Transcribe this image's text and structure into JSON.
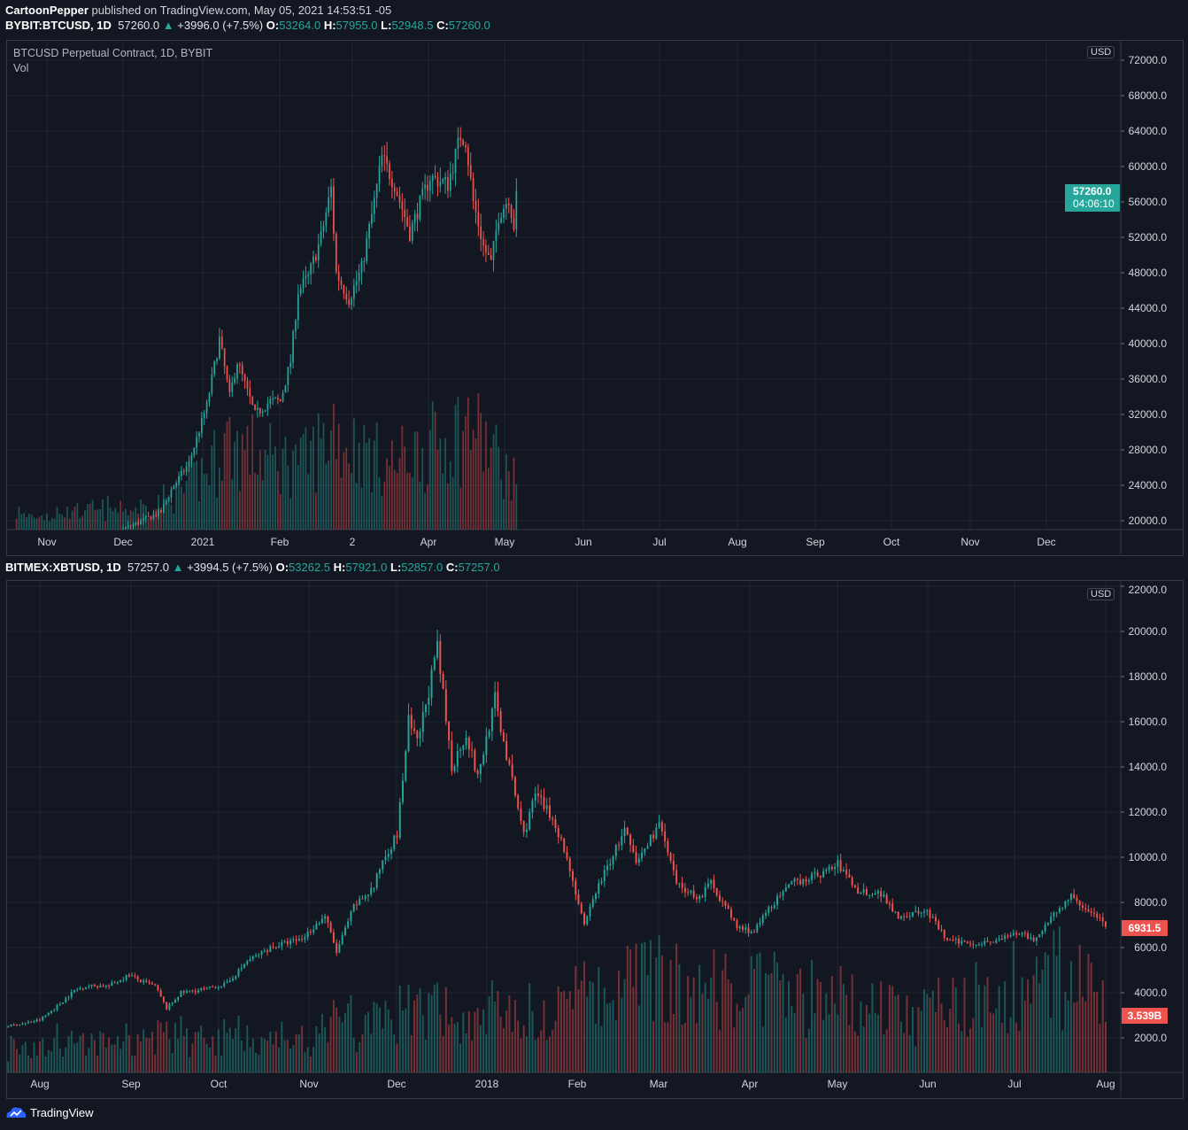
{
  "header": {
    "author": "CartoonPepper",
    "published": "published on TradingView.com, May 05, 2021 14:53:51 -05"
  },
  "top": {
    "symbol": "BYBIT:BTCUSD, 1D",
    "last": "57260.0",
    "change": "+3996.0 (+7.5%)",
    "o": "53264.0",
    "h": "57955.0",
    "l": "52948.5",
    "c": "57260.0",
    "title": "BTCUSD Perpetual Contract, 1D, BYBIT",
    "indicator": "Vol",
    "currency": "USD",
    "price_tag": "57260.0",
    "countdown": "04:06:10"
  },
  "bottom": {
    "symbol": "BITMEX:XBTUSD, 1D",
    "last": "57257.0",
    "change": "+3994.5 (+7.5%)",
    "o": "53262.5",
    "h": "57921.0",
    "l": "52857.0",
    "c": "57257.0",
    "currency": "USD",
    "price_tag": "6931.5",
    "volume_tag": "3.539B"
  },
  "footer": {
    "brand": "TradingView"
  },
  "colors": {
    "background": "#131722",
    "grid": "#222631",
    "up": "#26a69a",
    "down": "#ef5350",
    "text": "#d1d4dc"
  },
  "chart_data": [
    {
      "type": "candlestick",
      "symbol": "BYBIT:BTCUSD",
      "interval": "1D",
      "ylim": [
        20000,
        72000
      ],
      "y_ticks": [
        "72000.0",
        "68000.0",
        "64000.0",
        "60000.0",
        "56000.0",
        "52000.0",
        "48000.0",
        "44000.0",
        "40000.0",
        "36000.0",
        "32000.0",
        "28000.0",
        "24000.0",
        "20000.0"
      ],
      "x_ticks": [
        "Nov",
        "Dec",
        "2021",
        "Feb",
        "2",
        "Apr",
        "May",
        "Jun",
        "Jul",
        "Aug",
        "Sep",
        "Oct",
        "Nov",
        "Dec"
      ],
      "close": [
        [
          "2020-10-20",
          12000
        ],
        [
          "2020-11-15",
          16000
        ],
        [
          "2020-12-01",
          19000
        ],
        [
          "2020-12-16",
          21000
        ],
        [
          "2020-12-20",
          23500
        ],
        [
          "2020-12-27",
          26500
        ],
        [
          "2021-01-03",
          33000
        ],
        [
          "2021-01-08",
          40500
        ],
        [
          "2021-01-12",
          34000
        ],
        [
          "2021-01-15",
          38000
        ],
        [
          "2021-01-22",
          32000
        ],
        [
          "2021-01-28",
          33500
        ],
        [
          "2021-02-01",
          33500
        ],
        [
          "2021-02-05",
          38000
        ],
        [
          "2021-02-08",
          46000
        ],
        [
          "2021-02-12",
          47500
        ],
        [
          "2021-02-17",
          52000
        ],
        [
          "2021-02-21",
          57500
        ],
        [
          "2021-02-23",
          48000
        ],
        [
          "2021-02-28",
          45000
        ],
        [
          "2021-03-05",
          48500
        ],
        [
          "2021-03-10",
          56000
        ],
        [
          "2021-03-13",
          61000
        ],
        [
          "2021-03-18",
          58000
        ],
        [
          "2021-03-24",
          52500
        ],
        [
          "2021-03-28",
          55800
        ],
        [
          "2021-04-01",
          58800
        ],
        [
          "2021-04-08",
          58000
        ],
        [
          "2021-04-13",
          63500
        ],
        [
          "2021-04-15",
          63000
        ],
        [
          "2021-04-18",
          56000
        ],
        [
          "2021-04-22",
          51000
        ],
        [
          "2021-04-25",
          49000
        ],
        [
          "2021-04-28",
          54500
        ],
        [
          "2021-05-02",
          56500
        ],
        [
          "2021-05-04",
          53300
        ],
        [
          "2021-05-05",
          57260
        ]
      ],
      "volume_level": [
        [
          "2020-10-20",
          0.1
        ],
        [
          "2020-12-15",
          0.2
        ],
        [
          "2021-01-03",
          0.5
        ],
        [
          "2021-01-11",
          0.8
        ],
        [
          "2021-02-08",
          0.6
        ],
        [
          "2021-02-22",
          0.9
        ],
        [
          "2021-03-15",
          0.6
        ],
        [
          "2021-04-18",
          1.0
        ],
        [
          "2021-05-05",
          0.4
        ]
      ]
    },
    {
      "type": "candlestick",
      "symbol": "BITMEX:XBTUSD",
      "interval": "1D",
      "ylim": [
        0,
        22000
      ],
      "y_ticks": [
        "22000.0",
        "20000.0",
        "18000.0",
        "16000.0",
        "14000.0",
        "12000.0",
        "10000.0",
        "8000.0",
        "6000.0",
        "4000.0",
        "2000.0"
      ],
      "x_ticks": [
        "Aug",
        "Sep",
        "Oct",
        "Nov",
        "Dec",
        "2018",
        "Feb",
        "Mar",
        "Apr",
        "May",
        "Jun",
        "Jul",
        "Aug"
      ],
      "close": [
        [
          "2017-07-19",
          2500
        ],
        [
          "2017-07-25",
          2600
        ],
        [
          "2017-08-01",
          2800
        ],
        [
          "2017-08-07",
          3400
        ],
        [
          "2017-08-13",
          4100
        ],
        [
          "2017-08-17",
          4300
        ],
        [
          "2017-08-25",
          4300
        ],
        [
          "2017-09-01",
          4800
        ],
        [
          "2017-09-05",
          4500
        ],
        [
          "2017-09-10",
          4300
        ],
        [
          "2017-09-14",
          3300
        ],
        [
          "2017-09-19",
          4000
        ],
        [
          "2017-09-29",
          4200
        ],
        [
          "2017-10-05",
          4400
        ],
        [
          "2017-10-12",
          5400
        ],
        [
          "2017-10-20",
          6000
        ],
        [
          "2017-10-31",
          6400
        ],
        [
          "2017-11-08",
          7400
        ],
        [
          "2017-11-12",
          5800
        ],
        [
          "2017-11-18",
          7800
        ],
        [
          "2017-11-25",
          8700
        ],
        [
          "2017-11-28",
          9900
        ],
        [
          "2017-12-03",
          11000
        ],
        [
          "2017-12-07",
          16000
        ],
        [
          "2017-12-10",
          15000
        ],
        [
          "2017-12-17",
          19200
        ],
        [
          "2017-12-22",
          14000
        ],
        [
          "2017-12-27",
          15500
        ],
        [
          "2017-12-31",
          13500
        ],
        [
          "2018-01-06",
          17000
        ],
        [
          "2018-01-10",
          14500
        ],
        [
          "2018-01-16",
          11000
        ],
        [
          "2018-01-20",
          12800
        ],
        [
          "2018-01-27",
          11500
        ],
        [
          "2018-02-01",
          9500
        ],
        [
          "2018-02-06",
          6900
        ],
        [
          "2018-02-10",
          8500
        ],
        [
          "2018-02-20",
          11200
        ],
        [
          "2018-02-24",
          9700
        ],
        [
          "2018-03-04",
          11500
        ],
        [
          "2018-03-10",
          8800
        ],
        [
          "2018-03-18",
          8200
        ],
        [
          "2018-03-22",
          8900
        ],
        [
          "2018-03-31",
          6900
        ],
        [
          "2018-04-06",
          6700
        ],
        [
          "2018-04-12",
          7900
        ],
        [
          "2018-04-20",
          8900
        ],
        [
          "2018-04-30",
          9300
        ],
        [
          "2018-05-05",
          9700
        ],
        [
          "2018-05-12",
          8500
        ],
        [
          "2018-05-20",
          8400
        ],
        [
          "2018-05-26",
          7400
        ],
        [
          "2018-06-05",
          7600
        ],
        [
          "2018-06-12",
          6300
        ],
        [
          "2018-06-22",
          6200
        ],
        [
          "2018-06-30",
          6350
        ],
        [
          "2018-07-08",
          6700
        ],
        [
          "2018-07-12",
          6200
        ],
        [
          "2018-07-18",
          7400
        ],
        [
          "2018-07-25",
          8200
        ],
        [
          "2018-07-31",
          7700
        ],
        [
          "2018-08-06",
          6931.5
        ]
      ],
      "volume_level": [
        [
          "2017-07-19",
          0.2
        ],
        [
          "2017-11-01",
          0.3
        ],
        [
          "2017-12-10",
          0.5
        ],
        [
          "2018-01-16",
          0.45
        ],
        [
          "2018-02-06",
          0.6
        ],
        [
          "2018-03-01",
          0.8
        ],
        [
          "2018-04-15",
          0.7
        ],
        [
          "2018-06-01",
          0.5
        ],
        [
          "2018-07-20",
          0.9
        ],
        [
          "2018-08-06",
          0.7
        ]
      ]
    }
  ]
}
